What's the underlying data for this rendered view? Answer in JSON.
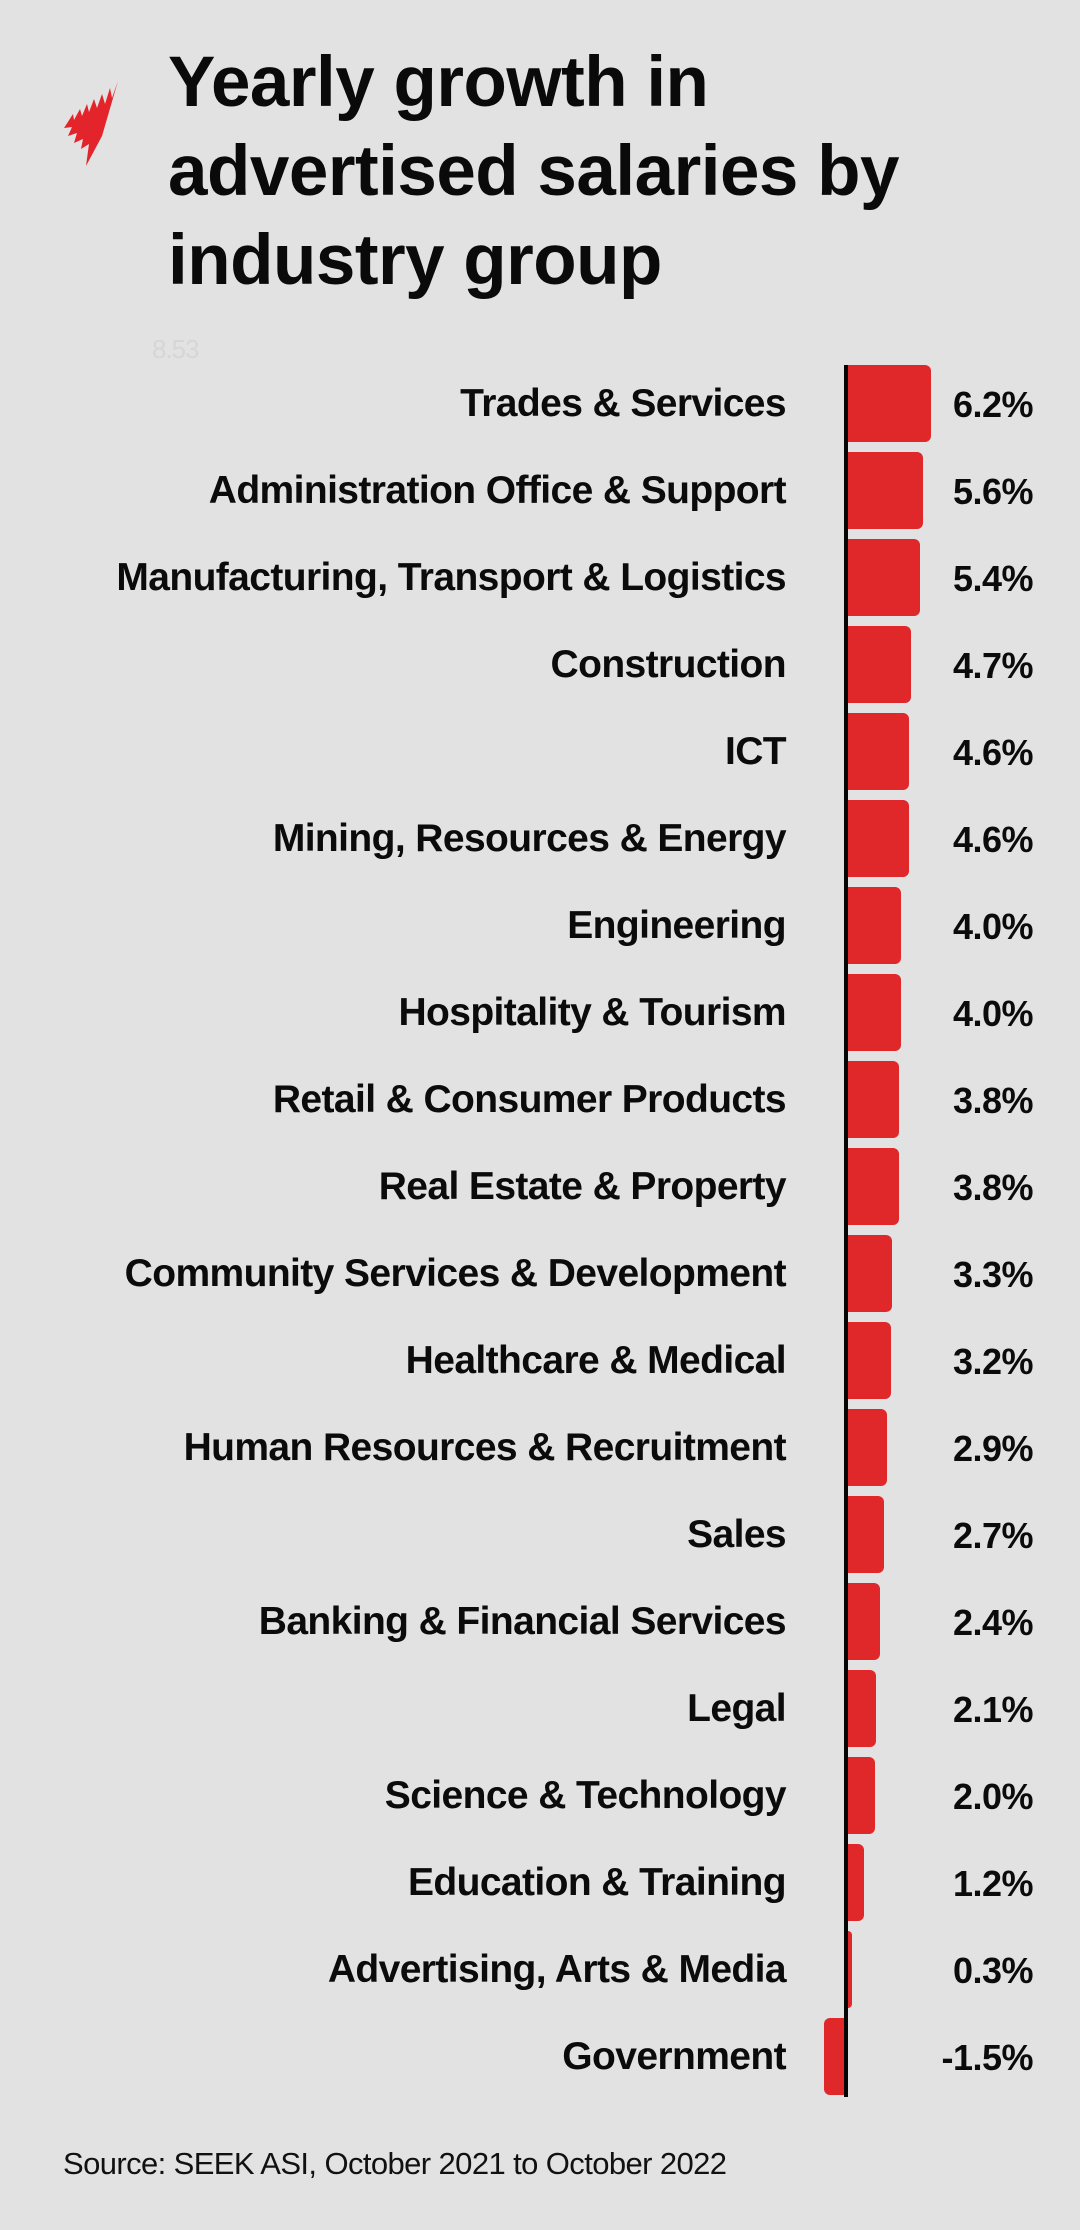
{
  "header": {
    "logo": "sbs-logo-icon",
    "title": "Yearly growth in advertised salaries by industry group",
    "ghost_text": "8.53"
  },
  "footer": {
    "source": "Source: SEEK ASI, October 2021 to October 2022"
  },
  "colors": {
    "background": "#e2e2e2",
    "bar": "#e0272a",
    "axis": "#050505",
    "text": "#0b0b0b",
    "logo": "#e3242b"
  },
  "chart_data": {
    "type": "bar",
    "orientation": "horizontal",
    "title": "Yearly growth in advertised salaries by industry group",
    "xlabel": "",
    "ylabel": "",
    "unit": "%",
    "grid": false,
    "legend": null,
    "categories": [
      "Trades & Services",
      "Administration Office & Support",
      "Manufacturing, Transport & Logistics",
      "Construction",
      "ICT",
      "Mining, Resources & Energy",
      "Engineering",
      "Hospitality & Tourism",
      "Retail & Consumer Products",
      "Real Estate & Property",
      "Community Services & Development",
      "Healthcare & Medical",
      "Human Resources & Recruitment",
      "Sales",
      "Banking & Financial Services",
      "Legal",
      "Science & Technology",
      "Education & Training",
      "Advertising, Arts & Media",
      "Government"
    ],
    "values": [
      6.2,
      5.6,
      5.4,
      4.7,
      4.6,
      4.6,
      4.0,
      4.0,
      3.8,
      3.8,
      3.3,
      3.2,
      2.9,
      2.7,
      2.4,
      2.1,
      2.0,
      1.2,
      0.3,
      -1.5
    ],
    "value_labels": [
      "6.2%",
      "5.6%",
      "5.4%",
      "4.7%",
      "4.6%",
      "4.6%",
      "4.0%",
      "4.0%",
      "3.8%",
      "3.8%",
      "3.3%",
      "3.2%",
      "2.9%",
      "2.7%",
      "2.4%",
      "2.1%",
      "2.0%",
      "1.2%",
      "0.3%",
      "-1.5%"
    ],
    "source": "Source: SEEK ASI, October 2021 to October 2022"
  }
}
